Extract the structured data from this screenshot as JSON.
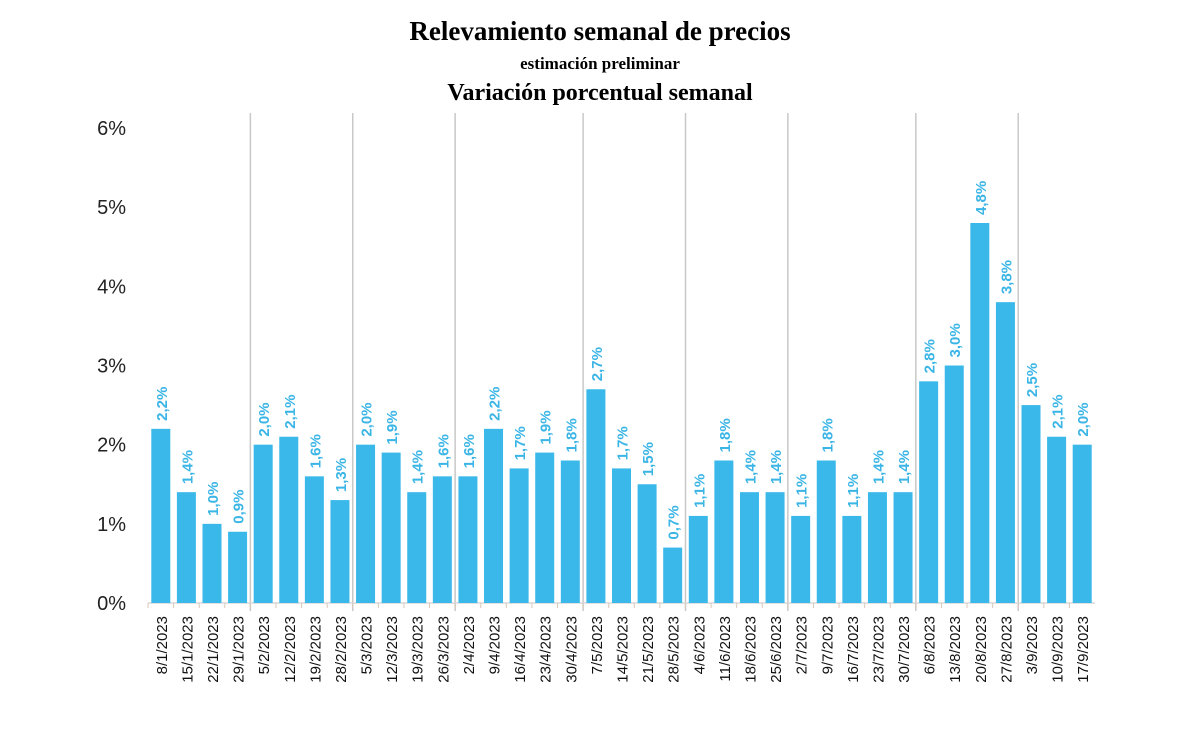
{
  "chart_data": {
    "type": "bar",
    "title": "Relevamiento semanal de precios",
    "subtitle": "estimación preliminar",
    "ylabel": "Variación porcentual semanal",
    "xlabel": "",
    "ylim": [
      0,
      6
    ],
    "yticks": [
      "0%",
      "1%",
      "2%",
      "3%",
      "4%",
      "5%",
      "6%"
    ],
    "grid": false,
    "bar_color": "#3ab8ea",
    "label_color": "#3ab5e6",
    "categories": [
      "8/1/2023",
      "15/1/2023",
      "22/1/2023",
      "29/1/2023",
      "5/2/2023",
      "12/2/2023",
      "19/2/2023",
      "28/2/2023",
      "5/3/2023",
      "12/3/2023",
      "19/3/2023",
      "26/3/2023",
      "2/4/2023",
      "9/4/2023",
      "16/4/2023",
      "23/4/2023",
      "30/4/2023",
      "7/5/2023",
      "14/5/2023",
      "21/5/2023",
      "28/5/2023",
      "4/6/2023",
      "11/6/2023",
      "18/6/2023",
      "25/6/2023",
      "2/7/2023",
      "9/7/2023",
      "16/7/2023",
      "23/7/2023",
      "30/7/2023",
      "6/8/2023",
      "13/8/2023",
      "20/8/2023",
      "27/8/2023",
      "3/9/2023",
      "10/9/2023",
      "17/9/2023"
    ],
    "values": [
      2.2,
      1.4,
      1.0,
      0.9,
      2.0,
      2.1,
      1.6,
      1.3,
      2.0,
      1.9,
      1.4,
      1.6,
      1.6,
      2.2,
      1.7,
      1.9,
      1.8,
      2.7,
      1.7,
      1.5,
      0.7,
      1.1,
      1.8,
      1.4,
      1.4,
      1.1,
      1.8,
      1.1,
      1.4,
      1.4,
      2.8,
      3.0,
      4.8,
      3.8,
      2.5,
      2.1,
      2.0
    ],
    "data_labels": [
      "2,2%",
      "1,4%",
      "1,0%",
      "0,9%",
      "2,0%",
      "2,1%",
      "1,6%",
      "1,3%",
      "2,0%",
      "1,9%",
      "1,4%",
      "1,6%",
      "1,6%",
      "2,2%",
      "1,7%",
      "1,9%",
      "1,8%",
      "2,7%",
      "1,7%",
      "1,5%",
      "0,7%",
      "1,1%",
      "1,8%",
      "1,4%",
      "1,4%",
      "1,1%",
      "1,8%",
      "1,1%",
      "1,4%",
      "1,4%",
      "2,8%",
      "3,0%",
      "4,8%",
      "3,8%",
      "2,5%",
      "2,1%",
      "2,0%"
    ]
  }
}
